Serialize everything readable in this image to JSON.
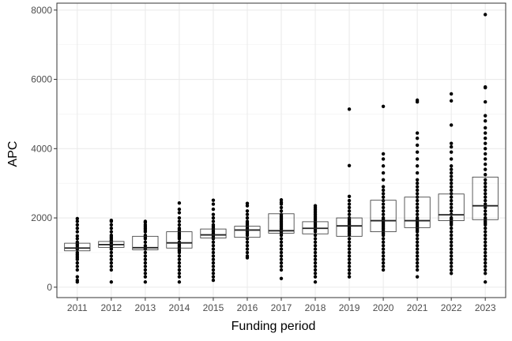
{
  "chart_data": {
    "type": "boxplot",
    "xlabel": "Funding period",
    "ylabel": "APC",
    "ylim": [
      -300,
      8200
    ],
    "yticks": [
      0,
      2000,
      4000,
      6000,
      8000
    ],
    "ytick_labels": [
      "0",
      "2000",
      "4000",
      "6000",
      "8000"
    ],
    "grid": true,
    "theme": "bw",
    "categories": [
      "2011",
      "2012",
      "2013",
      "2014",
      "2015",
      "2016",
      "2017",
      "2018",
      "2019",
      "2020",
      "2021",
      "2022",
      "2023"
    ],
    "boxes": [
      {
        "category": "2011",
        "q1": 1050,
        "median": 1130,
        "q3": 1270,
        "points": [
          1980,
          1900,
          1800,
          1700,
          1600,
          1480,
          1400,
          1300,
          1250,
          1200,
          1150,
          1100,
          1000,
          950,
          900,
          850,
          800,
          700,
          600,
          500,
          300,
          200,
          150
        ]
      },
      {
        "category": "2012",
        "q1": 1150,
        "median": 1230,
        "q3": 1320,
        "points": [
          1930,
          1900,
          1800,
          1700,
          1600,
          1500,
          1450,
          1400,
          1350,
          1300,
          1250,
          1200,
          1150,
          1100,
          1000,
          900,
          800,
          700,
          600,
          500,
          150
        ]
      },
      {
        "category": "2013",
        "q1": 1080,
        "median": 1140,
        "q3": 1470,
        "points": [
          1900,
          1870,
          1800,
          1750,
          1700,
          1650,
          1600,
          1500,
          1450,
          1400,
          1300,
          1200,
          1150,
          1100,
          1000,
          900,
          800,
          700,
          600,
          500,
          400,
          300,
          150
        ]
      },
      {
        "category": "2014",
        "q1": 1130,
        "median": 1280,
        "q3": 1600,
        "points": [
          2430,
          2250,
          2150,
          2000,
          1900,
          1800,
          1700,
          1650,
          1600,
          1550,
          1500,
          1450,
          1400,
          1300,
          1250,
          1200,
          1150,
          1100,
          1050,
          1000,
          900,
          800,
          700,
          600,
          500,
          400,
          300,
          150
        ]
      },
      {
        "category": "2015",
        "q1": 1420,
        "median": 1510,
        "q3": 1680,
        "points": [
          2510,
          2400,
          2250,
          2100,
          2000,
          1900,
          1800,
          1750,
          1700,
          1650,
          1600,
          1550,
          1500,
          1450,
          1400,
          1300,
          1200,
          1100,
          1000,
          900,
          800,
          700,
          600,
          500,
          400,
          300,
          200
        ]
      },
      {
        "category": "2016",
        "q1": 1440,
        "median": 1650,
        "q3": 1760,
        "points": [
          2420,
          2350,
          2200,
          2100,
          2000,
          1900,
          1850,
          1800,
          1750,
          1700,
          1650,
          1600,
          1550,
          1500,
          1400,
          1300,
          1200,
          1100,
          1000,
          900,
          850
        ]
      },
      {
        "category": "2017",
        "q1": 1560,
        "median": 1630,
        "q3": 2120,
        "points": [
          2520,
          2450,
          2400,
          2300,
          2200,
          2100,
          2050,
          2000,
          1950,
          1900,
          1850,
          1800,
          1750,
          1700,
          1650,
          1600,
          1550,
          1500,
          1400,
          1300,
          1200,
          1100,
          1000,
          900,
          800,
          700,
          600,
          500,
          250
        ]
      },
      {
        "category": "2018",
        "q1": 1540,
        "median": 1700,
        "q3": 1890,
        "points": [
          2350,
          2300,
          2250,
          2200,
          2150,
          2100,
          2050,
          2000,
          1950,
          1900,
          1850,
          1800,
          1750,
          1700,
          1650,
          1600,
          1500,
          1400,
          1300,
          1200,
          1100,
          1000,
          900,
          800,
          700,
          600,
          500,
          400,
          300,
          150
        ]
      },
      {
        "category": "2019",
        "q1": 1470,
        "median": 1770,
        "q3": 2000,
        "points": [
          5140,
          3510,
          2620,
          2500,
          2400,
          2300,
          2200,
          2100,
          2000,
          1950,
          1900,
          1850,
          1800,
          1750,
          1700,
          1650,
          1600,
          1550,
          1500,
          1400,
          1300,
          1200,
          1100,
          1000,
          900,
          800,
          700,
          600,
          500,
          400,
          300
        ]
      },
      {
        "category": "2020",
        "q1": 1600,
        "median": 1920,
        "q3": 2510,
        "points": [
          5220,
          3850,
          3700,
          3500,
          3300,
          3100,
          2900,
          2800,
          2700,
          2600,
          2500,
          2400,
          2300,
          2200,
          2100,
          2000,
          1950,
          1900,
          1850,
          1800,
          1750,
          1700,
          1650,
          1600,
          1550,
          1500,
          1400,
          1300,
          1200,
          1100,
          1000,
          900,
          800,
          700,
          600,
          500
        ]
      },
      {
        "category": "2021",
        "q1": 1720,
        "median": 1920,
        "q3": 2600,
        "points": [
          5400,
          5350,
          4450,
          4300,
          4100,
          3900,
          3700,
          3500,
          3300,
          3100,
          3000,
          2900,
          2800,
          2700,
          2600,
          2500,
          2400,
          2300,
          2200,
          2100,
          2000,
          1950,
          1900,
          1850,
          1800,
          1750,
          1700,
          1650,
          1600,
          1500,
          1400,
          1300,
          1200,
          1100,
          1000,
          900,
          800,
          700,
          600,
          500,
          300
        ]
      },
      {
        "category": "2022",
        "q1": 1920,
        "median": 2090,
        "q3": 2690,
        "points": [
          5580,
          5380,
          4680,
          4150,
          4050,
          3900,
          3700,
          3500,
          3400,
          3300,
          3200,
          3100,
          3000,
          2900,
          2800,
          2700,
          2600,
          2500,
          2400,
          2300,
          2200,
          2100,
          2000,
          1950,
          1900,
          1850,
          1800,
          1700,
          1600,
          1500,
          1400,
          1300,
          1200,
          1100,
          1000,
          900,
          800,
          700,
          600,
          500,
          400
        ]
      },
      {
        "category": "2023",
        "q1": 1950,
        "median": 2350,
        "q3": 3180,
        "points": [
          7870,
          5780,
          5760,
          5350,
          4950,
          4800,
          4600,
          4450,
          4300,
          4150,
          4000,
          3850,
          3700,
          3550,
          3400,
          3250,
          3100,
          3000,
          2900,
          2800,
          2700,
          2600,
          2500,
          2400,
          2300,
          2200,
          2100,
          2000,
          1950,
          1900,
          1850,
          1800,
          1700,
          1600,
          1500,
          1400,
          1300,
          1200,
          1100,
          1000,
          900,
          800,
          700,
          600,
          500,
          400,
          150
        ]
      }
    ]
  }
}
